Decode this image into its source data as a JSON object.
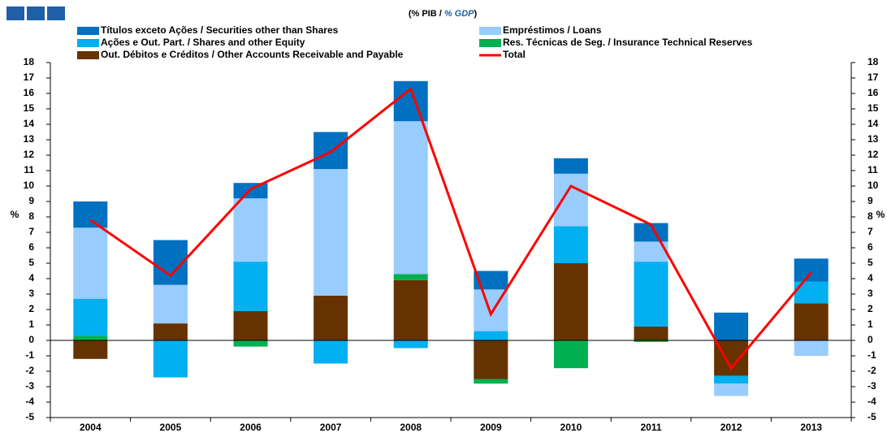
{
  "chart_data": {
    "type": "bar",
    "title_parts": [
      "(% PIB / ",
      "% GDP",
      ")"
    ],
    "y_label": "%",
    "y2_label": "%",
    "categories": [
      "2004",
      "2005",
      "2006",
      "2007",
      "2008",
      "2009",
      "2010",
      "2011",
      "2012",
      "2013"
    ],
    "series": [
      {
        "name": "Títulos exceto Ações / Securities other than Shares",
        "color": "#0070c0",
        "values": [
          1.7,
          2.9,
          1.0,
          2.4,
          2.6,
          1.2,
          1.0,
          1.2,
          1.8,
          1.5
        ]
      },
      {
        "name": "Empréstimos / Loans",
        "color": "#99ccff",
        "values": [
          4.6,
          2.5,
          4.1,
          8.2,
          9.9,
          2.7,
          3.4,
          1.3,
          -0.8,
          -1.0
        ]
      },
      {
        "name": "Ações e Out. Part. / Shares and other Equity",
        "color": "#00b0f0",
        "values": [
          2.4,
          -2.4,
          3.2,
          -1.5,
          -0.5,
          0.6,
          2.4,
          4.2,
          -0.5,
          1.4
        ]
      },
      {
        "name": "Res. Técnicas de Seg. / Insurance Technical Reserves",
        "color": "#00b050",
        "values": [
          0.3,
          0,
          -0.4,
          0,
          0.4,
          -0.3,
          -1.8,
          -0.1,
          0,
          0
        ]
      },
      {
        "name": "Out. Débitos e Créditos / Other Accounts Receivable and Payable",
        "color": "#663300",
        "values": [
          -1.2,
          1.1,
          1.9,
          2.9,
          3.9,
          -2.5,
          5.0,
          0.9,
          -2.3,
          2.4
        ]
      },
      {
        "name": "Total",
        "color": "#ff0000",
        "type": "line",
        "values": [
          7.8,
          4.2,
          9.8,
          12.2,
          16.3,
          1.7,
          10.0,
          7.5,
          -1.8,
          4.4
        ]
      }
    ],
    "ylim": [
      -5,
      18
    ],
    "yticks": [
      -5,
      -4,
      -3,
      -2,
      -1,
      0,
      1,
      2,
      3,
      4,
      5,
      6,
      7,
      8,
      9,
      10,
      11,
      12,
      13,
      14,
      15,
      16,
      17,
      18
    ],
    "y2lim": [
      -5,
      18
    ],
    "y2ticks": [
      -5,
      -4,
      -3,
      -2,
      -1,
      0,
      1,
      2,
      3,
      4,
      5,
      6,
      7,
      8,
      9,
      10,
      11,
      12,
      13,
      14,
      15,
      16,
      17,
      18
    ]
  }
}
